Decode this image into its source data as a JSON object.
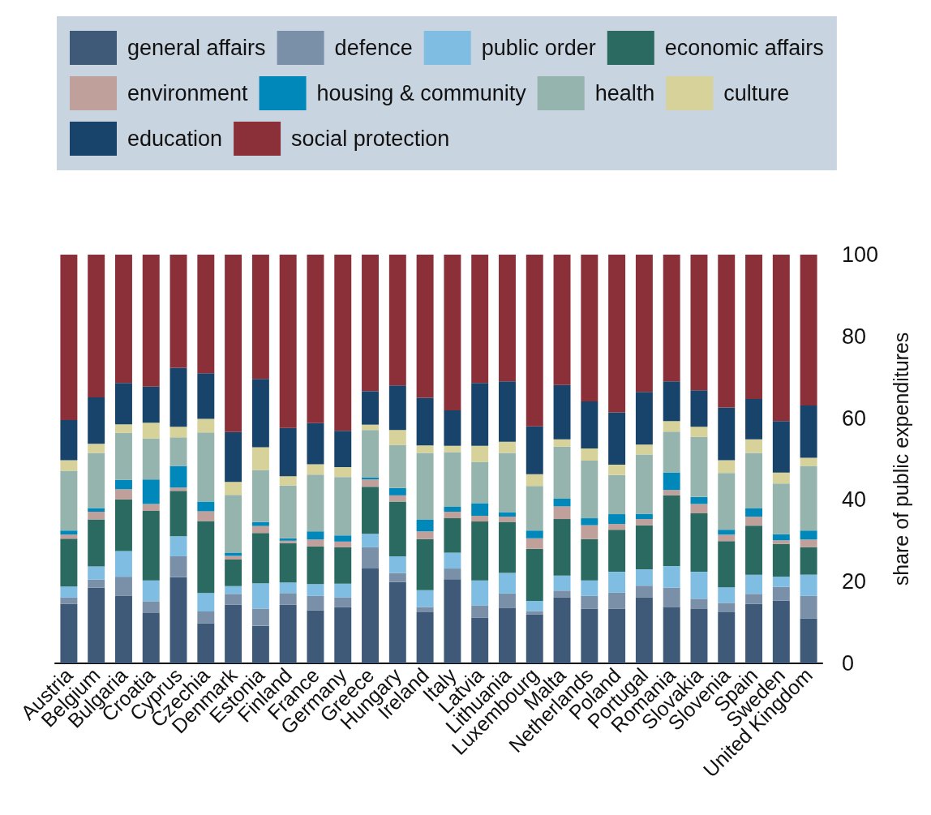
{
  "chart_data": {
    "type": "bar",
    "stacked": true,
    "ylabel": "share of public expenditures",
    "ylim": [
      0,
      100
    ],
    "yticks": [
      0,
      20,
      40,
      60,
      80,
      100
    ],
    "grid": false,
    "legend": "top",
    "categories": [
      "Austria",
      "Belgium",
      "Bulgaria",
      "Croatia",
      "Cyprus",
      "Czechia",
      "Denmark",
      "Estonia",
      "Finland",
      "France",
      "Germany",
      "Greece",
      "Hungary",
      "Ireland",
      "Italy",
      "Latvia",
      "Lithuania",
      "Luxembourg",
      "Malta",
      "Netherlands",
      "Poland",
      "Portugal",
      "Romania",
      "Slovakia",
      "Slovenia",
      "Spain",
      "Sweden",
      "United Kingdom"
    ],
    "series": [
      {
        "name": "general affairs",
        "color": "#3e5a78",
        "values": [
          14.6,
          18.5,
          16.5,
          12.3,
          21.1,
          9.8,
          14.4,
          9.2,
          14.4,
          13.0,
          13.8,
          23.2,
          19.9,
          12.5,
          20.6,
          11.2,
          13.5,
          12.0,
          16.1,
          13.4,
          13.4,
          16.1,
          13.7,
          13.3,
          12.5,
          14.6,
          15.4,
          11.0
        ]
      },
      {
        "name": "defence",
        "color": "#7a90a8",
        "values": [
          1.5,
          2.0,
          4.7,
          2.9,
          5.1,
          2.9,
          2.6,
          4.2,
          2.8,
          3.5,
          2.3,
          5.2,
          2.2,
          1.3,
          2.6,
          3.0,
          3.6,
          0.8,
          1.7,
          3.1,
          3.9,
          2.9,
          4.8,
          2.5,
          2.3,
          2.4,
          3.3,
          5.5
        ]
      },
      {
        "name": "public order",
        "color": "#80bde3",
        "values": [
          2.7,
          3.2,
          6.3,
          5.1,
          4.9,
          4.5,
          1.9,
          6.2,
          2.6,
          2.9,
          3.4,
          3.3,
          4.1,
          4.1,
          3.9,
          6.1,
          5.0,
          2.5,
          3.7,
          3.8,
          5.1,
          4.0,
          5.3,
          6.6,
          3.8,
          4.7,
          2.5,
          5.2
        ]
      },
      {
        "name": "economic affairs",
        "color": "#2a6a60",
        "values": [
          11.7,
          11.5,
          12.6,
          17.0,
          11.1,
          17.6,
          6.5,
          12.3,
          9.6,
          9.2,
          8.9,
          11.5,
          13.4,
          12.5,
          8.4,
          14.4,
          12.5,
          12.7,
          13.8,
          10.1,
          10.3,
          10.8,
          17.3,
          14.3,
          11.3,
          12.0,
          8.0,
          6.7
        ]
      },
      {
        "name": "environment",
        "color": "#c0a09a",
        "values": [
          1.0,
          1.9,
          2.5,
          1.7,
          0.8,
          2.4,
          0.9,
          1.7,
          0.6,
          1.7,
          1.4,
          1.8,
          1.5,
          1.9,
          1.6,
          1.4,
          1.3,
          2.6,
          3.1,
          3.4,
          1.4,
          1.5,
          1.3,
          2.3,
          1.6,
          2.2,
          0.9,
          1.9
        ]
      },
      {
        "name": "housing & community",
        "color": "#0088bb",
        "values": [
          1.0,
          0.9,
          2.3,
          6.0,
          5.3,
          2.4,
          0.8,
          1.0,
          0.6,
          2.0,
          1.5,
          0.5,
          1.8,
          2.8,
          1.2,
          3.1,
          1.1,
          1.9,
          1.9,
          1.7,
          2.4,
          1.3,
          4.3,
          1.7,
          1.2,
          2.0,
          1.5,
          2.2
        ]
      },
      {
        "name": "health",
        "color": "#95b4ad",
        "values": [
          14.6,
          13.5,
          11.5,
          10.0,
          7.0,
          16.9,
          14.1,
          12.7,
          12.9,
          13.9,
          14.3,
          11.6,
          10.5,
          16.4,
          13.4,
          10.1,
          14.5,
          10.9,
          12.7,
          14.1,
          9.6,
          14.5,
          10.0,
          14.7,
          13.9,
          13.6,
          12.4,
          15.8
        ]
      },
      {
        "name": "culture",
        "color": "#d6d29a",
        "values": [
          2.6,
          2.2,
          2.1,
          3.9,
          2.6,
          3.3,
          3.2,
          5.6,
          2.3,
          2.5,
          2.4,
          1.3,
          3.7,
          1.8,
          1.5,
          3.9,
          2.7,
          2.9,
          1.8,
          3.0,
          2.5,
          2.4,
          2.6,
          2.5,
          3.1,
          3.3,
          2.7,
          2.0
        ]
      },
      {
        "name": "education",
        "color": "#18436a",
        "values": [
          9.8,
          11.4,
          10.1,
          8.8,
          14.4,
          11.2,
          12.2,
          16.7,
          11.8,
          10.1,
          8.9,
          8.2,
          10.9,
          11.7,
          8.7,
          15.4,
          14.8,
          11.7,
          13.3,
          11.5,
          12.8,
          12.9,
          9.7,
          8.9,
          12.9,
          9.9,
          12.6,
          12.8
        ]
      },
      {
        "name": "social protection",
        "color": "#8b2f39",
        "values": [
          40.5,
          34.9,
          31.4,
          32.3,
          27.7,
          29.0,
          43.4,
          30.4,
          42.4,
          41.2,
          43.1,
          33.4,
          32.0,
          35.0,
          38.1,
          31.4,
          31.0,
          42.0,
          31.9,
          35.9,
          38.6,
          33.6,
          31.0,
          33.2,
          37.4,
          35.3,
          40.7,
          36.9
        ]
      }
    ]
  }
}
